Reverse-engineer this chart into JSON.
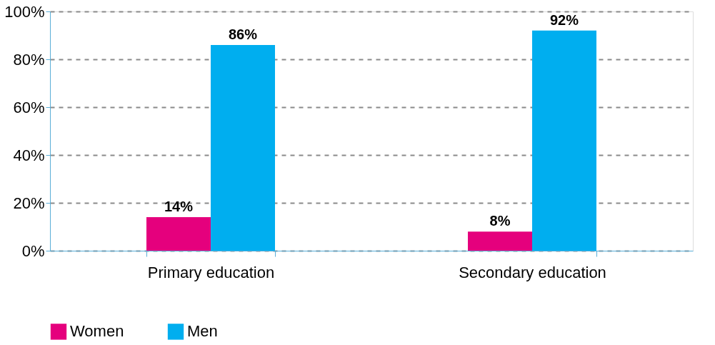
{
  "chart_data": {
    "type": "bar",
    "categories": [
      "Primary education",
      "Secondary education"
    ],
    "series": [
      {
        "name": "Women",
        "color": "#e5007d",
        "values": [
          14,
          8
        ],
        "value_labels": [
          "14%",
          "8%"
        ]
      },
      {
        "name": "Men",
        "color": "#00aeef",
        "values": [
          86,
          92
        ],
        "value_labels": [
          "86%",
          "92%"
        ]
      }
    ],
    "ylim": [
      0,
      100
    ],
    "yticks": [
      {
        "value": 0,
        "label": "0%"
      },
      {
        "value": 20,
        "label": "20%"
      },
      {
        "value": 40,
        "label": "40%"
      },
      {
        "value": 60,
        "label": "60%"
      },
      {
        "value": 80,
        "label": "80%"
      },
      {
        "value": 100,
        "label": "100%"
      }
    ],
    "grid": "y",
    "legend": "bottom"
  }
}
